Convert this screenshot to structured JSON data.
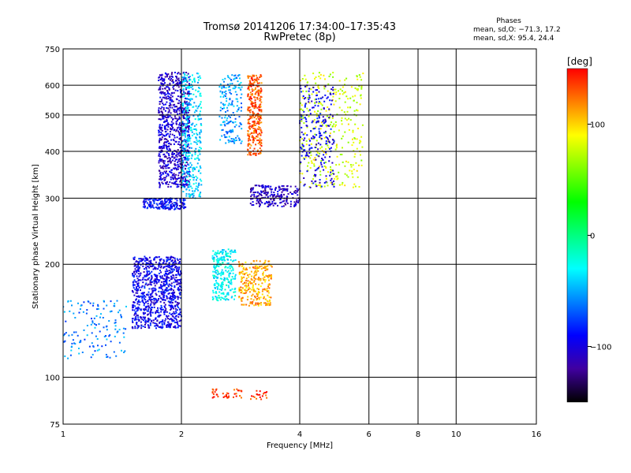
{
  "header": {
    "title_line1": "Tromsø 20141206 17:34:00–17:35:43",
    "title_line2": "RwPretec (8p)"
  },
  "phases": {
    "title": "Phases",
    "line1": "mean, sd,O: −71.3, 17.2",
    "line2": "mean, sd,X:  95.4, 24.4"
  },
  "colorbar": {
    "label": "[deg]",
    "ticks": [
      "100",
      "0",
      "−100"
    ],
    "colors": [
      "#ff0000",
      "#ff8000",
      "#ffff00",
      "#80ff00",
      "#00ff00",
      "#00ff80",
      "#00ffff",
      "#0080ff",
      "#0000ff",
      "#4000a0",
      "#000000"
    ]
  },
  "chart_data": {
    "type": "scatter",
    "title": "Tromsø 20141206 17:34:00–17:35:43",
    "subtitle": "RwPretec (8p)",
    "xlabel": "Frequency [MHz]",
    "ylabel": "Stationary phase Virtual Height [km]",
    "x_scale": "log",
    "y_scale": "log",
    "xlim": [
      1,
      16
    ],
    "ylim": [
      75,
      750
    ],
    "x_ticks": [
      "1",
      "2",
      "4",
      "6",
      "8",
      "10",
      "16"
    ],
    "y_ticks": [
      "75",
      "100",
      "200",
      "300",
      "400",
      "500",
      "600",
      "750"
    ],
    "clim": [
      -150,
      150
    ],
    "grid": true,
    "clusters": [
      {
        "x": [
          1.5,
          2.0
        ],
        "y": [
          135,
          210
        ],
        "phase": -95,
        "n": 900
      },
      {
        "x": [
          1.6,
          2.05
        ],
        "y": [
          280,
          300
        ],
        "phase": -90,
        "n": 180
      },
      {
        "x": [
          1.75,
          2.1
        ],
        "y": [
          320,
          650
        ],
        "phase": -105,
        "n": 800
      },
      {
        "x": [
          2.0,
          2.25
        ],
        "y": [
          300,
          650
        ],
        "phase": -40,
        "n": 350
      },
      {
        "x": [
          2.4,
          2.75
        ],
        "y": [
          160,
          220
        ],
        "phase": -30,
        "n": 250
      },
      {
        "x": [
          2.5,
          2.85
        ],
        "y": [
          420,
          640
        ],
        "phase": -55,
        "n": 180
      },
      {
        "x": [
          2.95,
          3.2
        ],
        "y": [
          390,
          640
        ],
        "phase": 130,
        "n": 320
      },
      {
        "x": [
          2.8,
          3.4
        ],
        "y": [
          155,
          205
        ],
        "phase": 110,
        "n": 260
      },
      {
        "x": [
          3.0,
          4.0
        ],
        "y": [
          285,
          325
        ],
        "phase": -110,
        "n": 220
      },
      {
        "x": [
          4.0,
          5.8
        ],
        "y": [
          320,
          650
        ],
        "phase": 80,
        "n": 350
      },
      {
        "x": [
          4.0,
          4.9
        ],
        "y": [
          320,
          600
        ],
        "phase": -95,
        "n": 220
      },
      {
        "x": [
          2.4,
          2.85
        ],
        "y": [
          88,
          93
        ],
        "phase": 140,
        "n": 40
      },
      {
        "x": [
          3.0,
          3.3
        ],
        "y": [
          87,
          92
        ],
        "phase": 140,
        "n": 20
      },
      {
        "x": [
          1.0,
          1.45
        ],
        "y": [
          112,
          160
        ],
        "phase": -60,
        "n": 140
      }
    ]
  }
}
